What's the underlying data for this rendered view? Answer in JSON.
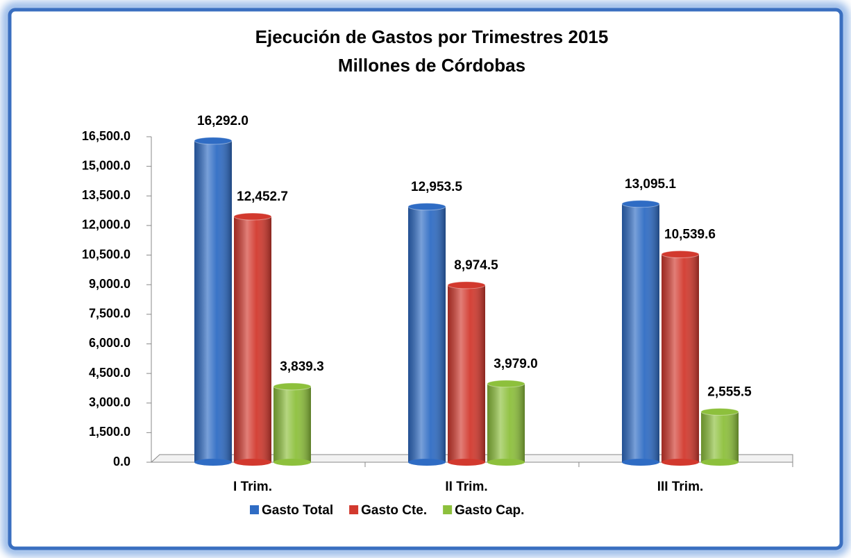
{
  "chart_data": {
    "type": "bar",
    "title": "Ejecución de  Gastos por Trimestres 2015",
    "subtitle": "Millones de Córdobas",
    "categories": [
      "I Trim.",
      "II Trim.",
      "III Trim."
    ],
    "series": [
      {
        "name": "Gasto Total",
        "color": "#2f6cc4",
        "values": [
          16292.0,
          12953.5,
          13095.1
        ],
        "value_labels": [
          "16,292.0",
          "12,953.5",
          "13,095.1"
        ]
      },
      {
        "name": "Gasto Cte.",
        "color": "#d2392e",
        "values": [
          12452.7,
          8974.5,
          10539.6
        ],
        "value_labels": [
          "12,452.7",
          "8,974.5",
          "10,539.6"
        ]
      },
      {
        "name": "Gasto Cap.",
        "color": "#8dc03c",
        "values": [
          3839.3,
          3979.0,
          2555.5
        ],
        "value_labels": [
          "3,839.3",
          "3,979.0",
          "2,555.5"
        ]
      }
    ],
    "ylim": [
      0,
      16500
    ],
    "yticks": [
      {
        "value": 0,
        "label": "0.0"
      },
      {
        "value": 1500,
        "label": "1,500.0"
      },
      {
        "value": 3000,
        "label": "3,000.0"
      },
      {
        "value": 4500,
        "label": "4,500.0"
      },
      {
        "value": 6000,
        "label": "6,000.0"
      },
      {
        "value": 7500,
        "label": "7,500.0"
      },
      {
        "value": 9000,
        "label": "9,000.0"
      },
      {
        "value": 10500,
        "label": "10,500.0"
      },
      {
        "value": 12000,
        "label": "12,000.0"
      },
      {
        "value": 13500,
        "label": "13,500.0"
      },
      {
        "value": 15000,
        "label": "15,000.0"
      },
      {
        "value": 16500,
        "label": "16,500.0"
      }
    ],
    "legend": "bottom"
  }
}
